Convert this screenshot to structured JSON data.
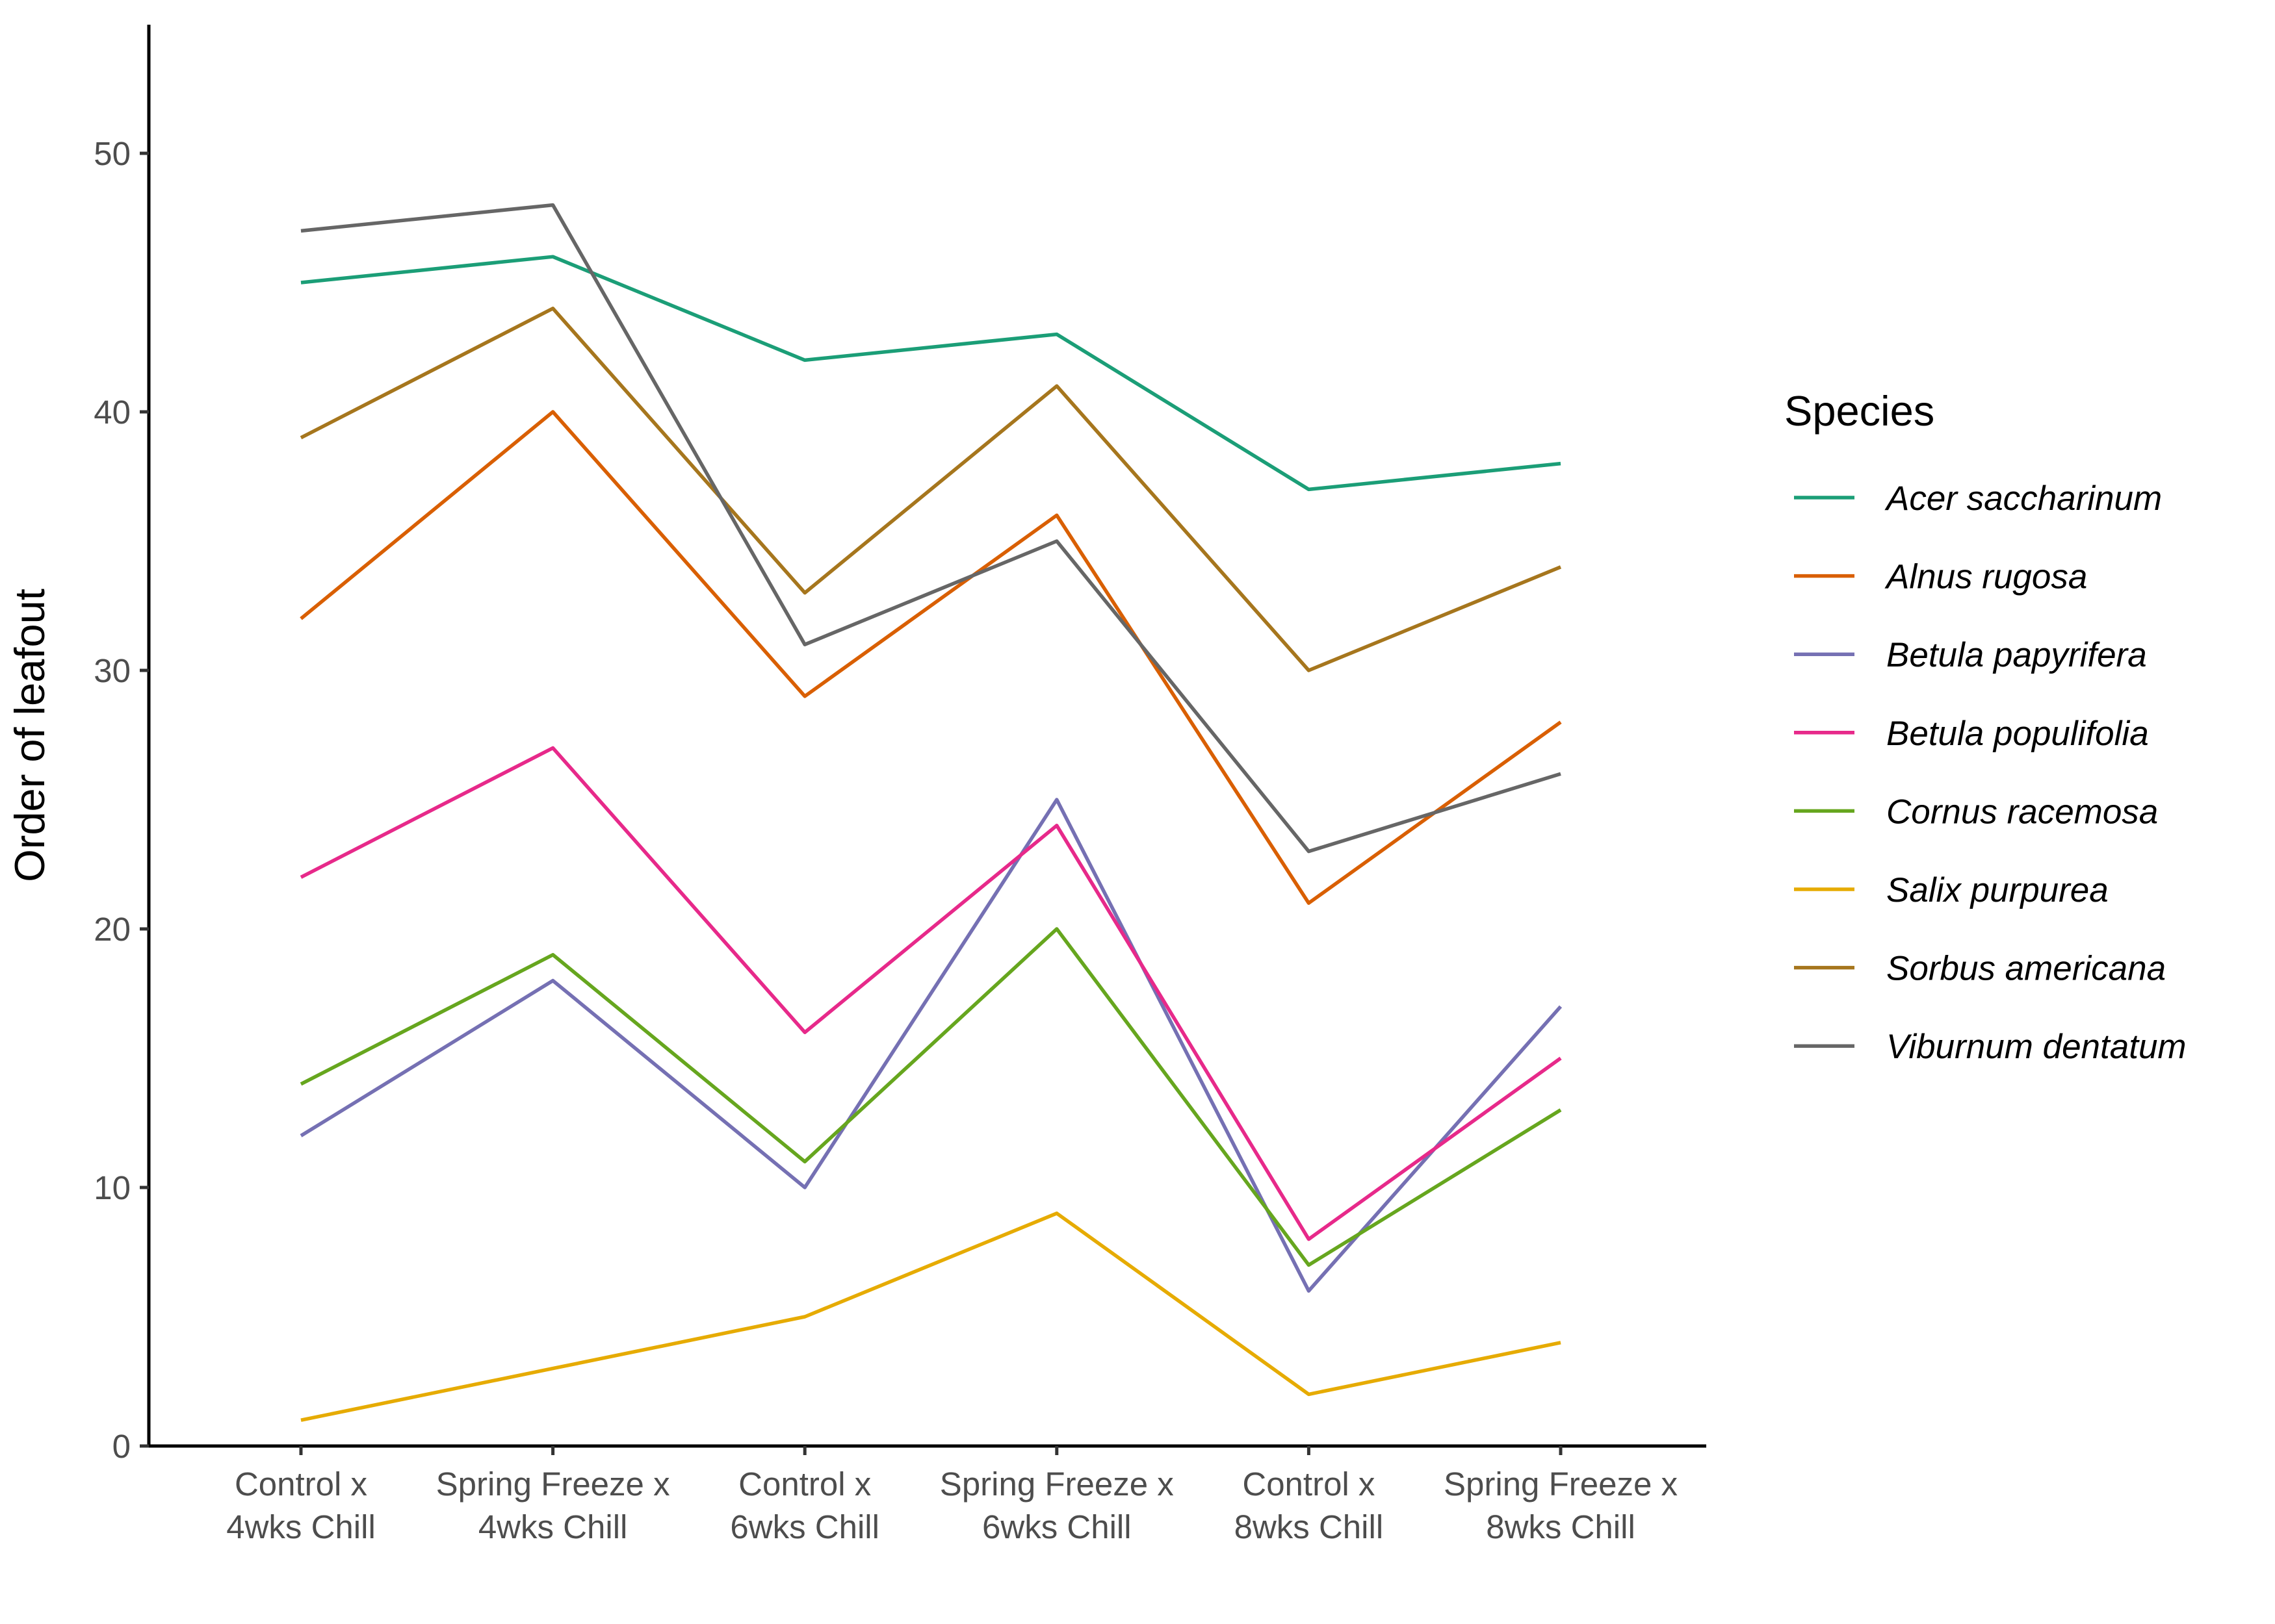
{
  "chart_data": {
    "type": "line",
    "title": "",
    "xlabel": "",
    "ylabel": "Order of leafout",
    "ylim": [
      0,
      55
    ],
    "y_ticks": [
      "0",
      "10",
      "20",
      "30",
      "40",
      "50"
    ],
    "grid": false,
    "legend_position": "right",
    "legend_title": "Species",
    "categories": [
      [
        "Control x",
        "4wks Chill"
      ],
      [
        "Spring Freeze x",
        "4wks Chill"
      ],
      [
        "Control x",
        "6wks Chill"
      ],
      [
        "Spring Freeze x",
        "6wks Chill"
      ],
      [
        "Control x",
        "8wks Chill"
      ],
      [
        "Spring Freeze x",
        "8wks Chill"
      ]
    ],
    "series": [
      {
        "name": "Acer saccharinum",
        "color": "#1b9e77",
        "values": [
          45,
          46,
          42,
          43,
          37,
          38
        ]
      },
      {
        "name": "Alnus rugosa",
        "color": "#d95f02",
        "values": [
          32,
          40,
          29,
          36,
          21,
          28
        ]
      },
      {
        "name": "Betula papyrifera",
        "color": "#7570b3",
        "values": [
          12,
          18,
          10,
          25,
          6,
          17
        ]
      },
      {
        "name": "Betula populifolia",
        "color": "#e7298a",
        "values": [
          22,
          27,
          16,
          24,
          8,
          15
        ]
      },
      {
        "name": "Cornus racemosa",
        "color": "#66a61e",
        "values": [
          14,
          19,
          11,
          20,
          7,
          13
        ]
      },
      {
        "name": "Salix purpurea",
        "color": "#e6ab02",
        "values": [
          1,
          3,
          5,
          9,
          2,
          4
        ]
      },
      {
        "name": "Sorbus americana",
        "color": "#a6761d",
        "values": [
          39,
          44,
          33,
          41,
          30,
          34
        ]
      },
      {
        "name": "Viburnum dentatum",
        "color": "#666666",
        "values": [
          47,
          48,
          31,
          35,
          23,
          26
        ]
      }
    ]
  }
}
